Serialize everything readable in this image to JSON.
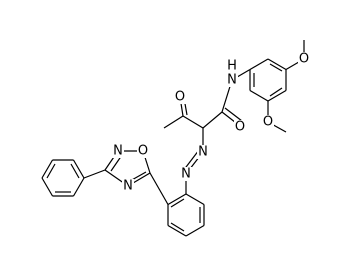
{
  "atoms": [
    {
      "label": "O"
    },
    {
      "label": "O"
    },
    {
      "label": "H"
    },
    {
      "label": "N"
    },
    {
      "label": "O"
    },
    {
      "label": "O"
    },
    {
      "label": "N"
    },
    {
      "label": "N"
    },
    {
      "label": "N"
    },
    {
      "label": "O"
    },
    {
      "label": "N"
    }
  ]
}
